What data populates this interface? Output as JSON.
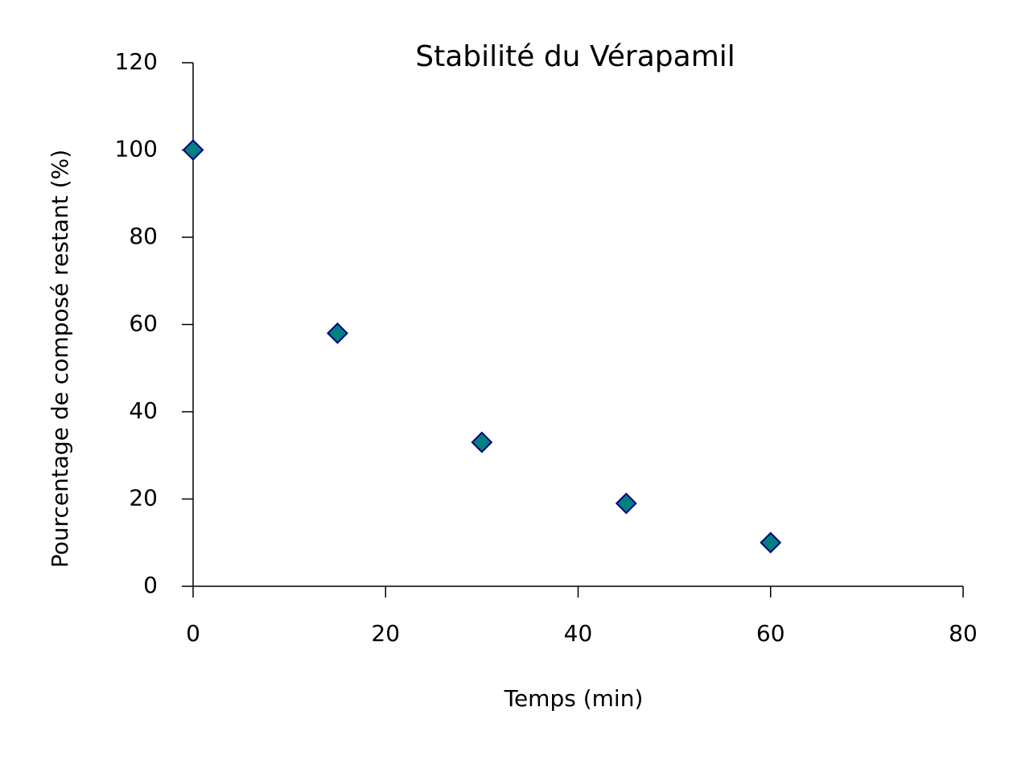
{
  "chart_data": {
    "type": "scatter",
    "title": "Stabilité du Vérapamil",
    "x_label": "Temps (min)",
    "y_label": "Pourcentage de composé restant (%)",
    "x": [
      0,
      15,
      30,
      45,
      60
    ],
    "values": [
      100,
      58,
      33,
      19,
      10
    ],
    "color": "#008080",
    "edge_color": "#000080",
    "marker": "diamond",
    "xlim": [
      0,
      80
    ],
    "xticks": [
      0,
      20,
      40,
      60,
      80
    ],
    "ylim": [
      0,
      120
    ],
    "yticks": [
      0,
      20,
      40,
      60,
      80,
      100,
      120
    ],
    "grid": false
  }
}
